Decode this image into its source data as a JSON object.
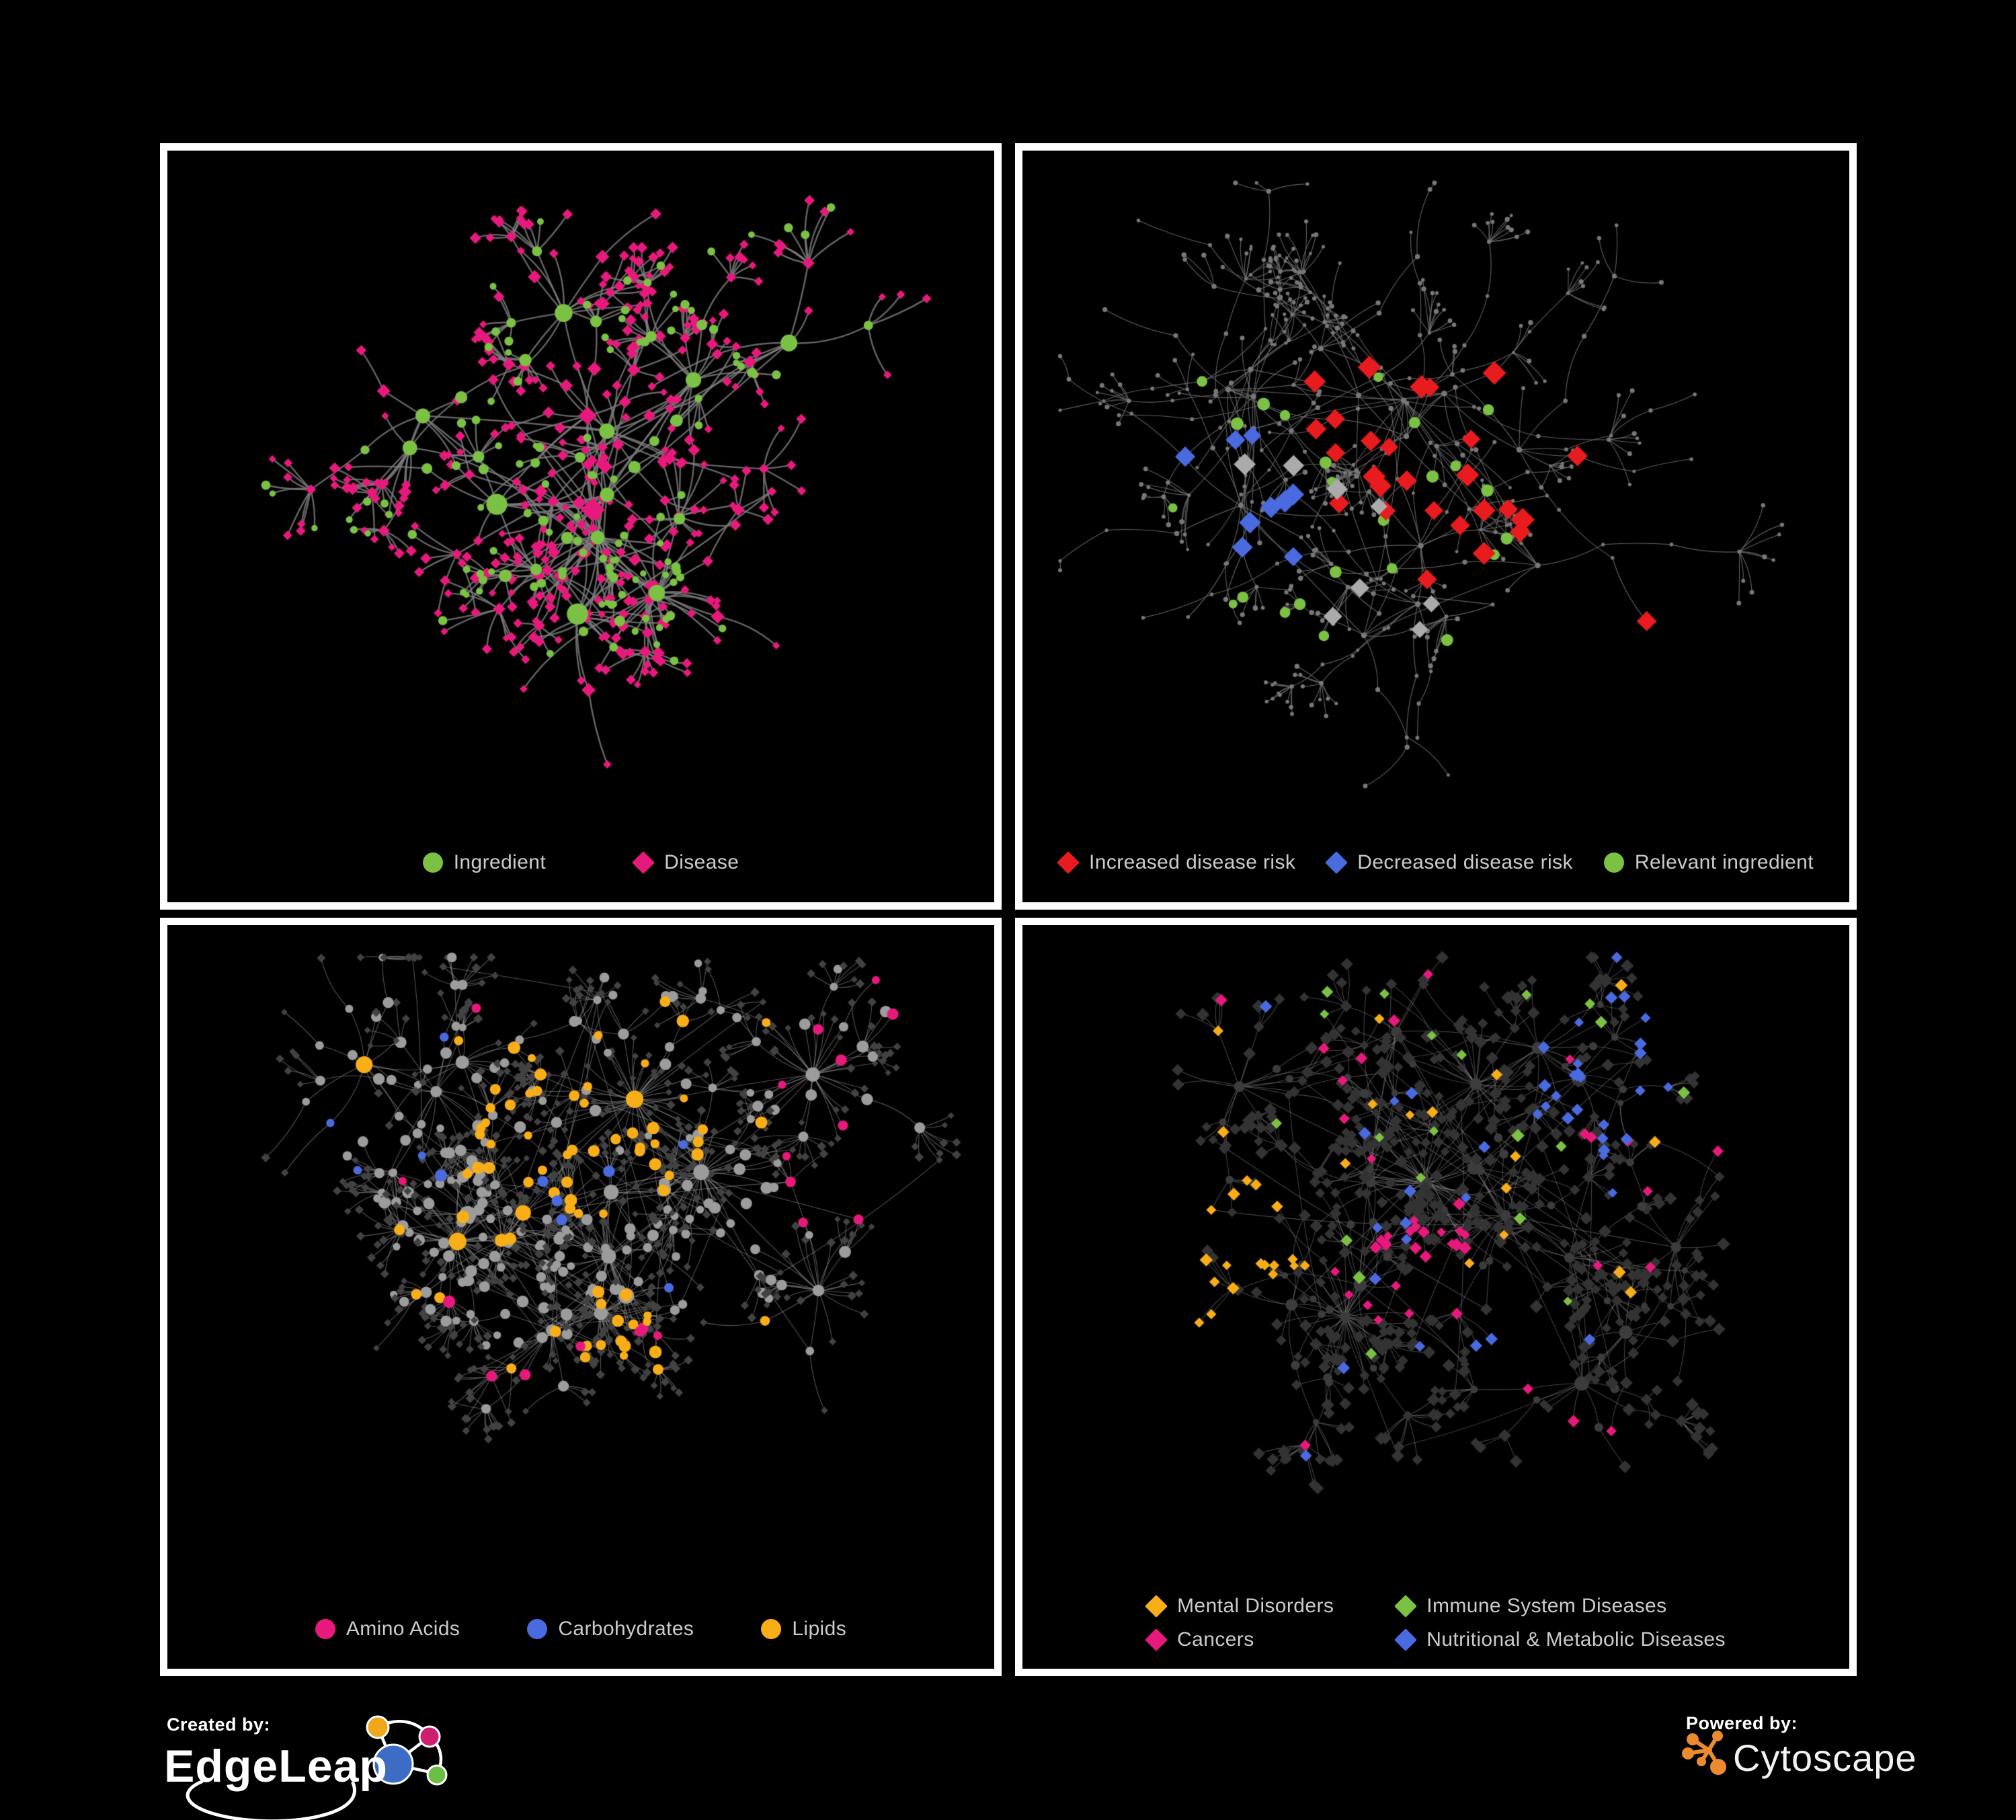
{
  "figure": {
    "background": "#000000",
    "panel_border_color": "#FFFFFF",
    "legend_text_color": "#CBCBCB"
  },
  "panels": [
    {
      "id": "ingredient-disease",
      "legend": [
        {
          "label": "Ingredient",
          "shape": "circle",
          "color": "#7BC143"
        },
        {
          "label": "Disease",
          "shape": "diamond",
          "color": "#E8197C"
        }
      ],
      "net": {
        "type": "bipartite",
        "seed": 11,
        "hubs": 13,
        "degMin": 4,
        "degVar": 10,
        "chain": 2,
        "step": 86,
        "burst": 0.42,
        "mega": 0.25,
        "cross": 10,
        "crossDist": 300,
        "edge": {
          "color": "#7F7F7F",
          "width": 2.4,
          "alpha": 0.8
        },
        "colors": {
          "ingredient": "#7BC143",
          "disease": "#E8197C"
        }
      }
    },
    {
      "id": "disease-risk",
      "legend": [
        {
          "label": "Increased disease risk",
          "shape": "diamond",
          "color": "#E81B1E"
        },
        {
          "label": "Decreased disease risk",
          "shape": "diamond",
          "color": "#4A6BE0"
        },
        {
          "label": "Relevant ingredient",
          "shape": "circle",
          "color": "#7BC143"
        }
      ],
      "net": {
        "type": "highlight",
        "seed": 29,
        "hubs": 15,
        "degMin": 3,
        "degVar": 10,
        "chain": 4,
        "step": 78,
        "burst": 0.5,
        "mega": 0.2,
        "cross": 26,
        "crossDist": 260,
        "edge": {
          "color": "#6F6F6F",
          "width": 1.15,
          "alpha": 0.85
        },
        "colors": {
          "base": "#787878",
          "increased": "#E81B1E",
          "decreased": "#4A6BE0",
          "neutral": "#ABABAB",
          "ingredient": "#7BC143"
        }
      }
    },
    {
      "id": "ingredient-classes",
      "legend": [
        {
          "label": "Amino Acids",
          "shape": "circle",
          "color": "#E8197C"
        },
        {
          "label": "Carbohydrates",
          "shape": "circle",
          "color": "#4A6BE0"
        },
        {
          "label": "Lipids",
          "shape": "circle",
          "color": "#F9AE17"
        }
      ],
      "net": {
        "type": "classes",
        "seed": 47,
        "hubs": 16,
        "degMin": 5,
        "degVar": 12,
        "chain": 2,
        "step": 72,
        "burst": 0.45,
        "mega": 0.3,
        "cross": 36,
        "crossDist": 520,
        "edge": {
          "color": "#A8A8A8",
          "width": 1.1,
          "alpha": 0.5
        },
        "colors": {
          "amino": "#E8197C",
          "carb": "#4A6BE0",
          "lipid": "#F9AE17",
          "other": "#9C9C9C",
          "disease": "#424242"
        }
      }
    },
    {
      "id": "disease-classes",
      "legend": [
        {
          "label": "Mental Disorders",
          "shape": "diamond",
          "color": "#F9AE17"
        },
        {
          "label": "Immune System Diseases",
          "shape": "diamond",
          "color": "#7BC143"
        },
        {
          "label": "Cancers",
          "shape": "diamond",
          "color": "#E8197C"
        },
        {
          "label": "Nutritional & Metabolic Diseases",
          "shape": "diamond",
          "color": "#4A6BE0"
        }
      ],
      "net": {
        "type": "diseaseClasses",
        "seed": 63,
        "hubs": 16,
        "degMin": 5,
        "degVar": 12,
        "chain": 2,
        "step": 72,
        "burst": 0.45,
        "mega": 0.3,
        "cross": 36,
        "crossDist": 520,
        "edge": {
          "color": "#9A9A9A",
          "width": 1.05,
          "alpha": 0.45
        },
        "colors": {
          "mental": "#F9AE17",
          "immune": "#7BC143",
          "cancer": "#E8197C",
          "metabolic": "#4A6BE0",
          "ingredient": "#3C3C3C",
          "other": "#333333"
        }
      }
    }
  ],
  "footer": {
    "created_by_label": "Created by:",
    "created_by_brand": "EdgeLeap",
    "powered_by_label": "Powered by:",
    "powered_by_brand": "Cytoscape",
    "cytoscape_color": "#EB8B2D",
    "edgeleap_colors": {
      "blue": "#3D6CC4",
      "orange": "#F2A71B",
      "pink": "#CE1E6E",
      "green": "#6DBE45"
    }
  }
}
